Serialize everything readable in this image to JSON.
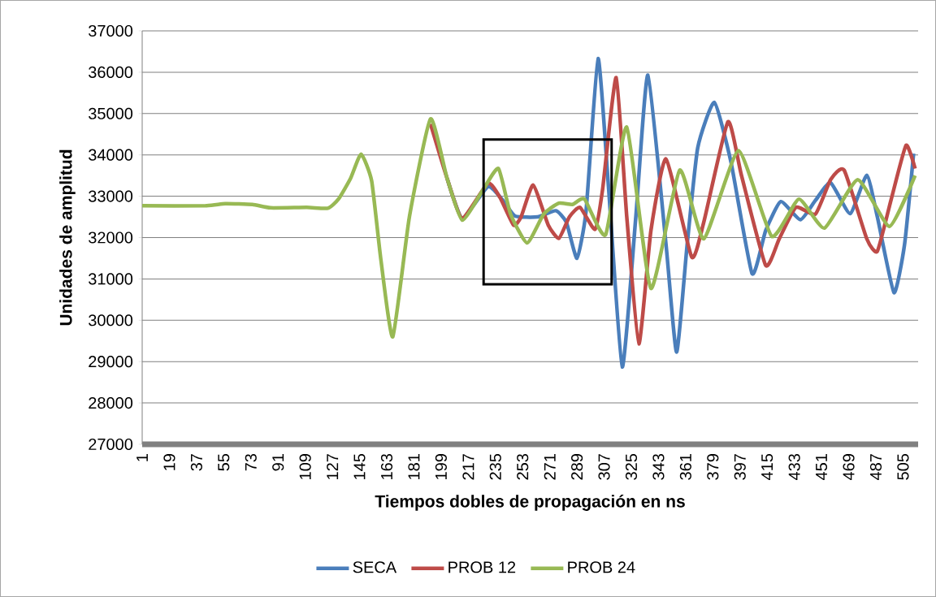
{
  "chart_data": {
    "type": "line",
    "xlabel": "Tiempos dobles de propagación en ns",
    "ylabel": "Unidades de amplitud",
    "xlim": [
      1,
      515
    ],
    "ylim": [
      27000,
      37000
    ],
    "xticks": [
      1,
      19,
      37,
      55,
      73,
      91,
      109,
      127,
      145,
      163,
      181,
      199,
      217,
      235,
      253,
      271,
      289,
      307,
      325,
      343,
      361,
      379,
      397,
      415,
      433,
      451,
      469,
      487,
      505
    ],
    "yticks": [
      27000,
      28000,
      29000,
      30000,
      31000,
      32000,
      33000,
      34000,
      35000,
      36000,
      37000
    ],
    "grid": "y",
    "legend": "bottom",
    "marker": "none",
    "line_style": "solid",
    "series": [
      {
        "name": "SECA",
        "color": "#4a7ebb",
        "x": [
          203,
          213,
          230,
          240,
          248,
          263,
          275,
          282,
          289,
          295,
          303,
          310,
          319,
          328,
          336,
          348,
          355,
          362,
          369,
          380,
          391,
          405,
          414,
          424,
          437,
          447,
          457,
          470,
          481,
          488,
          499,
          506,
          512
        ],
        "values": [
          33430,
          32470,
          33230,
          32900,
          32520,
          32500,
          32650,
          32370,
          31500,
          32630,
          36330,
          33170,
          28870,
          32500,
          35930,
          31830,
          29230,
          31830,
          34170,
          35270,
          33830,
          31130,
          32170,
          32870,
          32430,
          32900,
          33330,
          32580,
          33510,
          32500,
          30670,
          31830,
          34030
        ]
      },
      {
        "name": "PROB 12",
        "color": "#be4b48",
        "x": [
          192,
          203,
          213,
          230,
          238,
          247,
          252,
          260,
          270,
          277,
          284,
          291,
          301,
          306,
          315,
          322,
          330,
          338,
          348,
          365,
          373,
          389,
          398,
          414,
          423,
          434,
          447,
          457,
          466,
          481,
          488,
          497,
          507,
          513
        ],
        "values": [
          34750,
          33430,
          32470,
          33310,
          32970,
          32300,
          32500,
          33270,
          32300,
          31980,
          32500,
          32730,
          32200,
          33170,
          35870,
          32500,
          29430,
          32170,
          33900,
          31530,
          32370,
          34800,
          33500,
          31330,
          31970,
          32730,
          32570,
          33400,
          33630,
          31970,
          31670,
          32900,
          34230,
          33670
        ]
      },
      {
        "name": "PROB 24",
        "color": "#98b954",
        "x": [
          1,
          43,
          56,
          74,
          86,
          110,
          124,
          131,
          139,
          146,
          153,
          159,
          167,
          178,
          192,
          203,
          213,
          227,
          237,
          245,
          256,
          267,
          277,
          286,
          294,
          308,
          322,
          338,
          357,
          373,
          396,
          418,
          436,
          453,
          475,
          496,
          513
        ],
        "values": [
          32770,
          32770,
          32820,
          32800,
          32720,
          32730,
          32710,
          32930,
          33430,
          34020,
          33370,
          31500,
          29600,
          32500,
          34870,
          33430,
          32420,
          33170,
          33670,
          32570,
          31870,
          32570,
          32830,
          32800,
          32930,
          32070,
          34670,
          30770,
          33630,
          31970,
          34100,
          32030,
          32930,
          32230,
          33400,
          32270,
          33500
        ]
      }
    ]
  }
}
